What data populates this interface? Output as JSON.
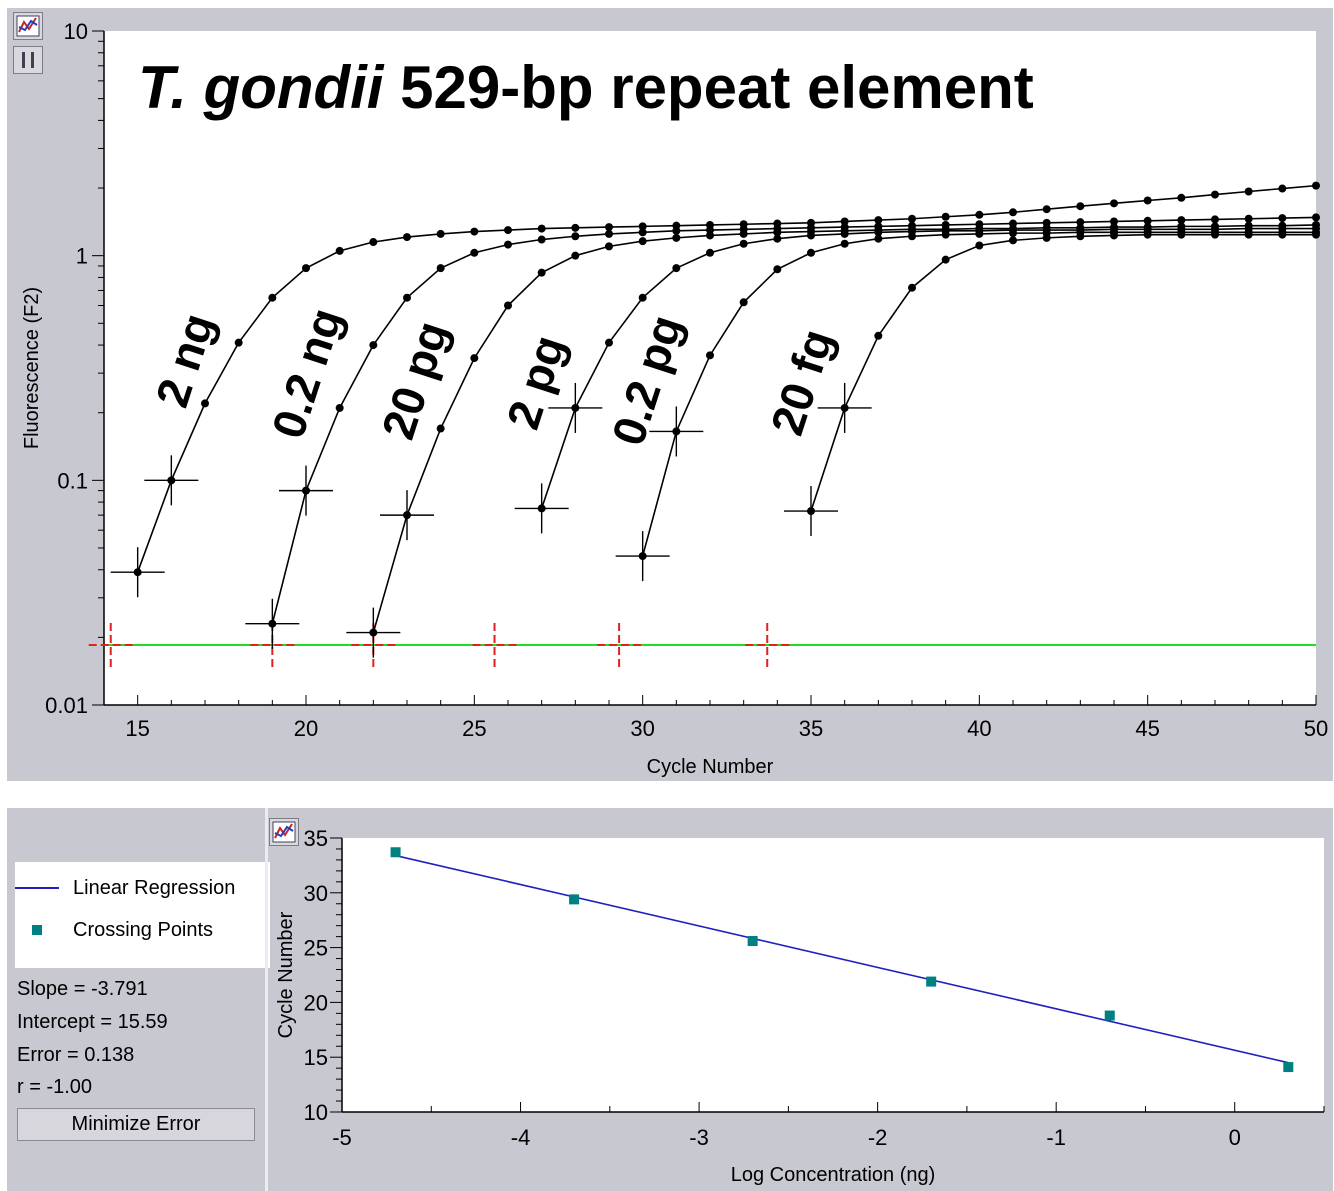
{
  "top_chart": {
    "title_italic": "T. gondii",
    "title_rest": " 529-bp repeat element",
    "xlabel": "Cycle Number",
    "ylabel": "Fluorescence (F2)",
    "x_ticks": [
      "15",
      "20",
      "25",
      "30",
      "35",
      "40",
      "45",
      "50"
    ],
    "y_ticks": [
      "10",
      "1",
      "0.1",
      "0.01"
    ],
    "sample_labels": [
      "2 ng",
      "0.2 ng",
      "20 pg",
      "2 pg",
      "0.2 pg",
      "20 fg"
    ],
    "colors": {
      "curve": "#000000",
      "threshold": "#22dd22",
      "cross_marker": "#dd2222",
      "plot_bg": "#ffffff",
      "frame": "#c8c8d0"
    }
  },
  "chart_data": [
    {
      "type": "line",
      "title": "T. gondii 529-bp repeat element",
      "xlabel": "Cycle Number",
      "ylabel": "Fluorescence (F2)",
      "xlim": [
        14,
        50
      ],
      "ylim": [
        0.01,
        10
      ],
      "y_scale": "log",
      "grid": false,
      "threshold": 0.0185,
      "crossing_markers_x": [
        14.2,
        19,
        22,
        25.6,
        29.3,
        33.7
      ],
      "series": [
        {
          "name": "2 ng",
          "start": 15,
          "x": [
            15,
            16,
            17,
            18,
            19,
            20,
            21,
            22,
            23,
            24,
            25,
            26,
            27,
            28,
            29,
            30,
            31,
            32,
            33,
            34,
            35,
            36,
            37,
            38,
            39,
            40,
            41,
            42,
            43,
            44,
            45,
            46,
            47,
            48,
            49,
            50
          ],
          "y": [
            0.039,
            0.1,
            0.22,
            0.41,
            0.65,
            0.88,
            1.05,
            1.15,
            1.21,
            1.25,
            1.28,
            1.3,
            1.32,
            1.33,
            1.34,
            1.35,
            1.36,
            1.37,
            1.38,
            1.39,
            1.4,
            1.42,
            1.44,
            1.46,
            1.49,
            1.52,
            1.56,
            1.61,
            1.66,
            1.71,
            1.76,
            1.81,
            1.87,
            1.93,
            1.99,
            2.05
          ]
        },
        {
          "name": "0.2 ng",
          "start": 19,
          "x": [
            19,
            20,
            21,
            22,
            23,
            24,
            25,
            26,
            27,
            28,
            29,
            30,
            31,
            32,
            33,
            34,
            35,
            36,
            37,
            38,
            39,
            40,
            41,
            42,
            43,
            44,
            45,
            46,
            47,
            48,
            49,
            50
          ],
          "y": [
            0.023,
            0.09,
            0.21,
            0.4,
            0.65,
            0.88,
            1.03,
            1.12,
            1.18,
            1.22,
            1.25,
            1.27,
            1.29,
            1.3,
            1.31,
            1.32,
            1.33,
            1.34,
            1.35,
            1.36,
            1.37,
            1.38,
            1.39,
            1.4,
            1.41,
            1.42,
            1.43,
            1.44,
            1.45,
            1.46,
            1.47,
            1.48
          ]
        },
        {
          "name": "20 pg",
          "start": 22,
          "x": [
            22,
            23,
            24,
            25,
            26,
            27,
            28,
            29,
            30,
            31,
            32,
            33,
            34,
            35,
            36,
            37,
            38,
            39,
            40,
            41,
            42,
            43,
            44,
            45,
            46,
            47,
            48,
            49,
            50
          ],
          "y": [
            0.021,
            0.07,
            0.17,
            0.35,
            0.6,
            0.84,
            1.0,
            1.1,
            1.16,
            1.2,
            1.23,
            1.25,
            1.27,
            1.28,
            1.29,
            1.3,
            1.31,
            1.31,
            1.32,
            1.32,
            1.33,
            1.33,
            1.34,
            1.34,
            1.35,
            1.35,
            1.36,
            1.36,
            1.37
          ]
        },
        {
          "name": "2 pg",
          "start": 27,
          "x": [
            27,
            28,
            29,
            30,
            31,
            32,
            33,
            34,
            35,
            36,
            37,
            38,
            39,
            40,
            41,
            42,
            43,
            44,
            45,
            46,
            47,
            48,
            49,
            50
          ],
          "y": [
            0.075,
            0.21,
            0.41,
            0.65,
            0.88,
            1.03,
            1.13,
            1.19,
            1.23,
            1.25,
            1.27,
            1.28,
            1.29,
            1.29,
            1.3,
            1.3,
            1.3,
            1.31,
            1.31,
            1.31,
            1.31,
            1.32,
            1.32,
            1.32
          ]
        },
        {
          "name": "0.2 pg",
          "start": 30,
          "x": [
            30,
            31,
            32,
            33,
            34,
            35,
            36,
            37,
            38,
            39,
            40,
            41,
            42,
            43,
            44,
            45,
            46,
            47,
            48,
            49,
            50
          ],
          "y": [
            0.046,
            0.165,
            0.36,
            0.62,
            0.87,
            1.03,
            1.13,
            1.19,
            1.22,
            1.24,
            1.25,
            1.26,
            1.26,
            1.27,
            1.27,
            1.27,
            1.27,
            1.27,
            1.27,
            1.27,
            1.27
          ]
        },
        {
          "name": "20 fg",
          "start": 35,
          "x": [
            35,
            36,
            37,
            38,
            39,
            40,
            41,
            42,
            43,
            44,
            45,
            46,
            47,
            48,
            49,
            50
          ],
          "y": [
            0.073,
            0.21,
            0.44,
            0.72,
            0.96,
            1.11,
            1.17,
            1.2,
            1.22,
            1.23,
            1.24,
            1.24,
            1.24,
            1.24,
            1.24,
            1.24
          ]
        }
      ]
    },
    {
      "type": "scatter",
      "xlabel": "Log Concentration (ng)",
      "ylabel": "Cycle Number",
      "xlim": [
        -5,
        0.5
      ],
      "ylim": [
        10,
        35
      ],
      "x_ticks": [
        "-5",
        "-4",
        "-3",
        "-2",
        "-1",
        "0"
      ],
      "y_ticks": [
        "35",
        "30",
        "25",
        "20",
        "15",
        "10"
      ],
      "grid": false,
      "series": [
        {
          "name": "Crossing Points",
          "x": [
            -4.7,
            -3.7,
            -2.7,
            -1.7,
            -0.7,
            0.3
          ],
          "y": [
            33.7,
            29.4,
            25.6,
            21.9,
            18.8,
            14.1
          ]
        },
        {
          "name": "Linear Regression",
          "x": [
            -4.7,
            0.3
          ],
          "y": [
            33.4,
            14.5
          ]
        }
      ],
      "colors": {
        "points": "#008080",
        "line": "#2020c0"
      }
    }
  ],
  "bottom_panel": {
    "legend": {
      "line_label": "Linear Regression",
      "points_label": "Crossing Points"
    },
    "stats": {
      "slope": "Slope = -3.791",
      "intercept": "Intercept = 15.59",
      "error": "Error = 0.138",
      "r": "r = -1.00"
    },
    "minimize_button": "Minimize Error",
    "toolbar_icons": [
      "chart-options-icon",
      "pause-icon"
    ]
  }
}
